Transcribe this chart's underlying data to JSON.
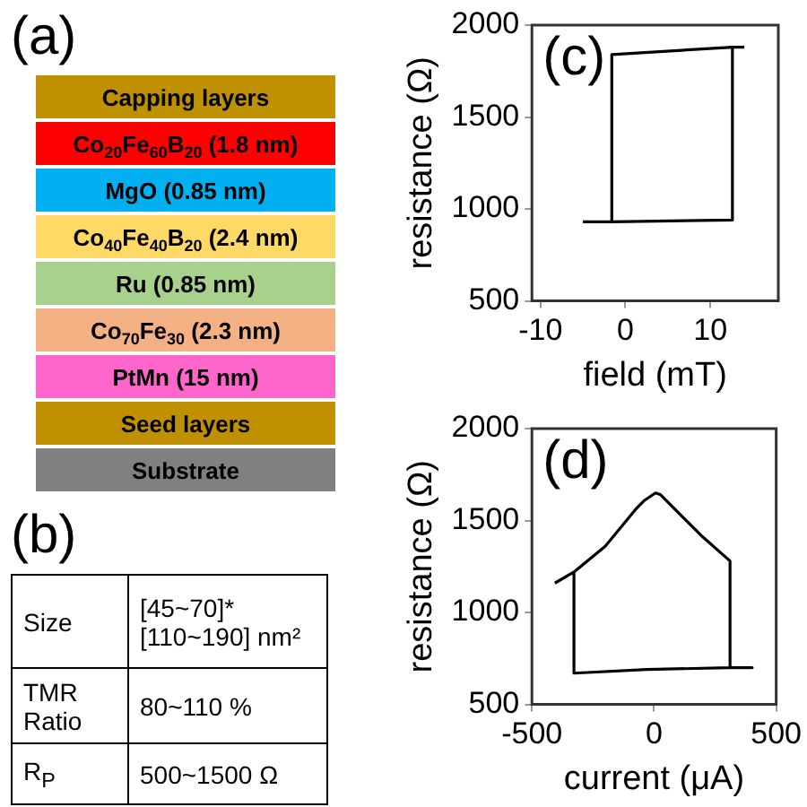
{
  "chart_data": [
    {
      "type": "other",
      "title": "(a)",
      "annotations": [
        "Capping layers",
        "Co$_{20}$Fe$_{60}$B$_{20}$ (1.8 nm)",
        "MgO (0.85 nm)",
        "Co$_{40}$Fe$_{40}$B$_{20}$ (2.4 nm)",
        "Ru (0.85 nm)",
        "Co$_{70}$Fe$_{30}$ (2.3 nm)",
        "PtMn (15 nm)",
        "Seed layers",
        "Substrate"
      ],
      "colors": [
        "#bf9000",
        "#ff0000",
        "#00b0f0",
        "#ffd966",
        "#a9d18e",
        "#f4b183",
        "#ff66cc",
        "#bf9000",
        "#808080"
      ]
    },
    {
      "type": "other",
      "title": "(b)",
      "annotations": [
        "Size",
        "[45~70]* [110~190] nm²",
        "TMR Ratio",
        "80~110 %",
        "R$_{P}$",
        "500~1500 Ω"
      ]
    },
    {
      "type": "line",
      "xlabel": "field (mT)",
      "ylabel": "resistance (Ω)",
      "annotations": [
        "(c)"
      ],
      "xlim": [
        -11,
        18
      ],
      "xticks": [
        -10,
        0,
        10
      ],
      "ylim": [
        500,
        2000
      ],
      "yticks": [
        500,
        1000,
        1500,
        2000
      ],
      "grid": false,
      "legend": false,
      "series": [
        {
          "color": "#000000",
          "x": [
            -5,
            -1.6,
            -1.6,
            12.6,
            12.6,
            -1.6
          ],
          "values": [
            930,
            930,
            1840,
            1880,
            940,
            930
          ]
        },
        {
          "color": "#000000",
          "x": [
            12.6,
            14
          ],
          "values": [
            1880,
            1880
          ]
        }
      ]
    },
    {
      "type": "line",
      "xlabel": "current (μA)",
      "ylabel": "resistance (Ω)",
      "annotations": [
        "(d)"
      ],
      "xlim": [
        -500,
        500
      ],
      "xticks": [
        -500,
        0,
        500
      ],
      "ylim": [
        500,
        2000
      ],
      "yticks": [
        500,
        1000,
        1500,
        2000
      ],
      "grid": false,
      "legend": false,
      "series": [
        {
          "color": "#000000",
          "x": [
            -406,
            -328,
            -200,
            -76,
            -39,
            6,
            27,
            109,
            192,
            311,
            311,
            402,
            311,
            -30,
            -328,
            -328
          ],
          "values": [
            1160,
            1220,
            1360,
            1560,
            1610,
            1650,
            1640,
            1530,
            1420,
            1280,
            700,
            700,
            700,
            690,
            670,
            1220
          ]
        }
      ]
    }
  ]
}
